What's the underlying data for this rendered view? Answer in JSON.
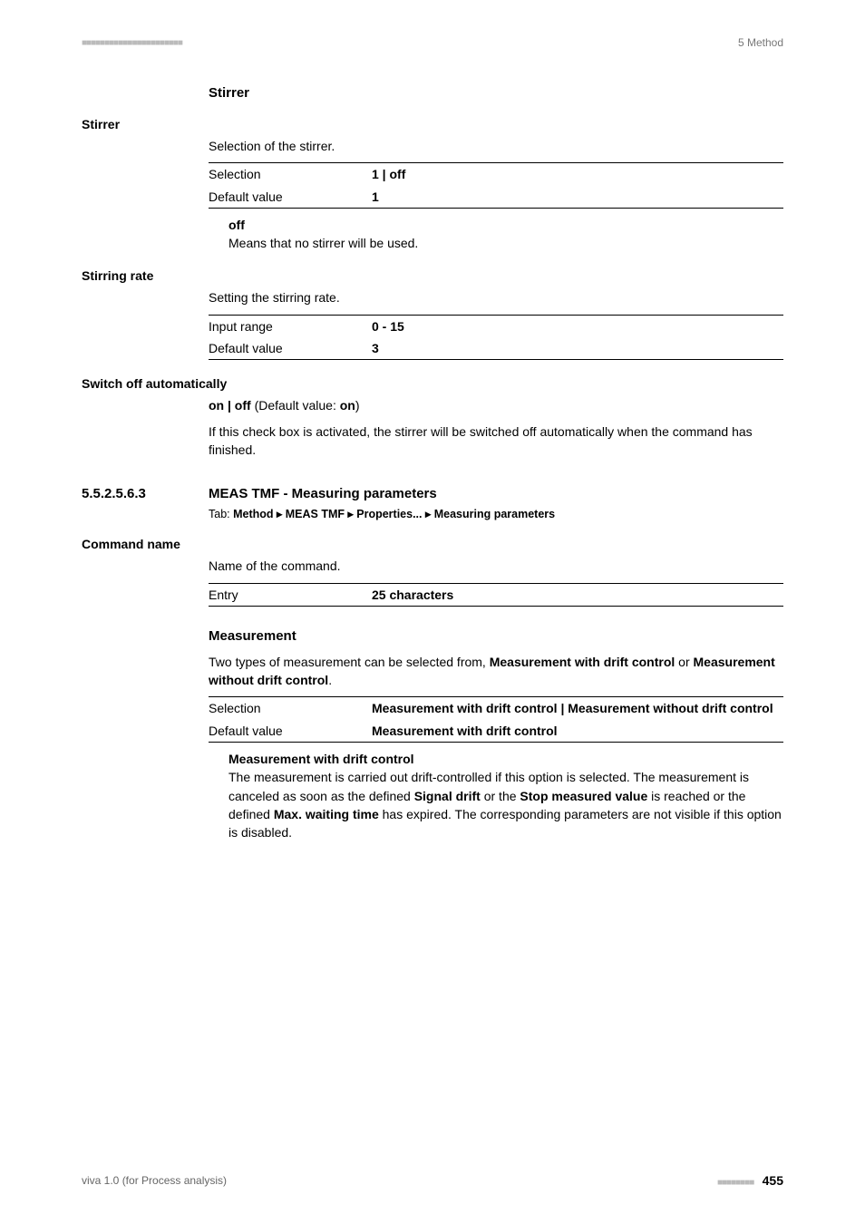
{
  "header": {
    "left_dots": "■■■■■■■■■■■■■■■■■■■■■■",
    "right": "5 Method"
  },
  "stirrer_section": {
    "heading": "Stirrer",
    "field_label": "Stirrer",
    "desc": "Selection of the stirrer.",
    "rows": [
      {
        "k": "Selection",
        "v": "1 | off"
      },
      {
        "k": "Default value",
        "v": "1"
      }
    ],
    "option": {
      "title": "off",
      "text": "Means that no stirrer will be used."
    }
  },
  "stirring_rate": {
    "field_label": "Stirring rate",
    "desc": "Setting the stirring rate.",
    "rows": [
      {
        "k": "Input range",
        "v": "0 - 15"
      },
      {
        "k": "Default value",
        "v": "3"
      }
    ]
  },
  "switch_off": {
    "field_label": "Switch off automatically",
    "default_line_pre": "on | off",
    "default_line_mid": " (Default value: ",
    "default_line_val": "on",
    "default_line_post": ")",
    "text": "If this check box is activated, the stirrer will be switched off automatically when the command has finished."
  },
  "meas_section": {
    "num": "5.5.2.5.6.3",
    "title": "MEAS TMF - Measuring parameters",
    "tab_pre": "Tab: ",
    "tab_path": "Method ▸ MEAS TMF ▸ Properties... ▸ Measuring parameters"
  },
  "command_name": {
    "field_label": "Command name",
    "desc": "Name of the command.",
    "rows": [
      {
        "k": "Entry",
        "v": "25 characters"
      }
    ]
  },
  "measurement": {
    "heading": "Measurement",
    "desc_pre": "Two types of measurement can be selected from, ",
    "desc_b1": "Measurement with drift control",
    "desc_mid": " or ",
    "desc_b2": "Measurement without drift control",
    "desc_post": ".",
    "rows": [
      {
        "k": "Selection",
        "v": "Measurement with drift control | Measurement without drift control"
      },
      {
        "k": "Default value",
        "v": "Measurement with drift control"
      }
    ],
    "option": {
      "title": "Measurement with drift control",
      "p1a": "The measurement is carried out drift-controlled if this option is selected. The measurement is canceled as soon as the defined ",
      "p1b": "Signal drift",
      "p1c": " or the ",
      "p1d": "Stop measured value",
      "p1e": " is reached or the defined ",
      "p1f": "Max. waiting time",
      "p1g": " has expired. The corresponding parameters are not visible if this option is disabled."
    }
  },
  "footer": {
    "left": "viva 1.0 (for Process analysis)",
    "dots": "■■■■■■■■",
    "page": "455"
  }
}
